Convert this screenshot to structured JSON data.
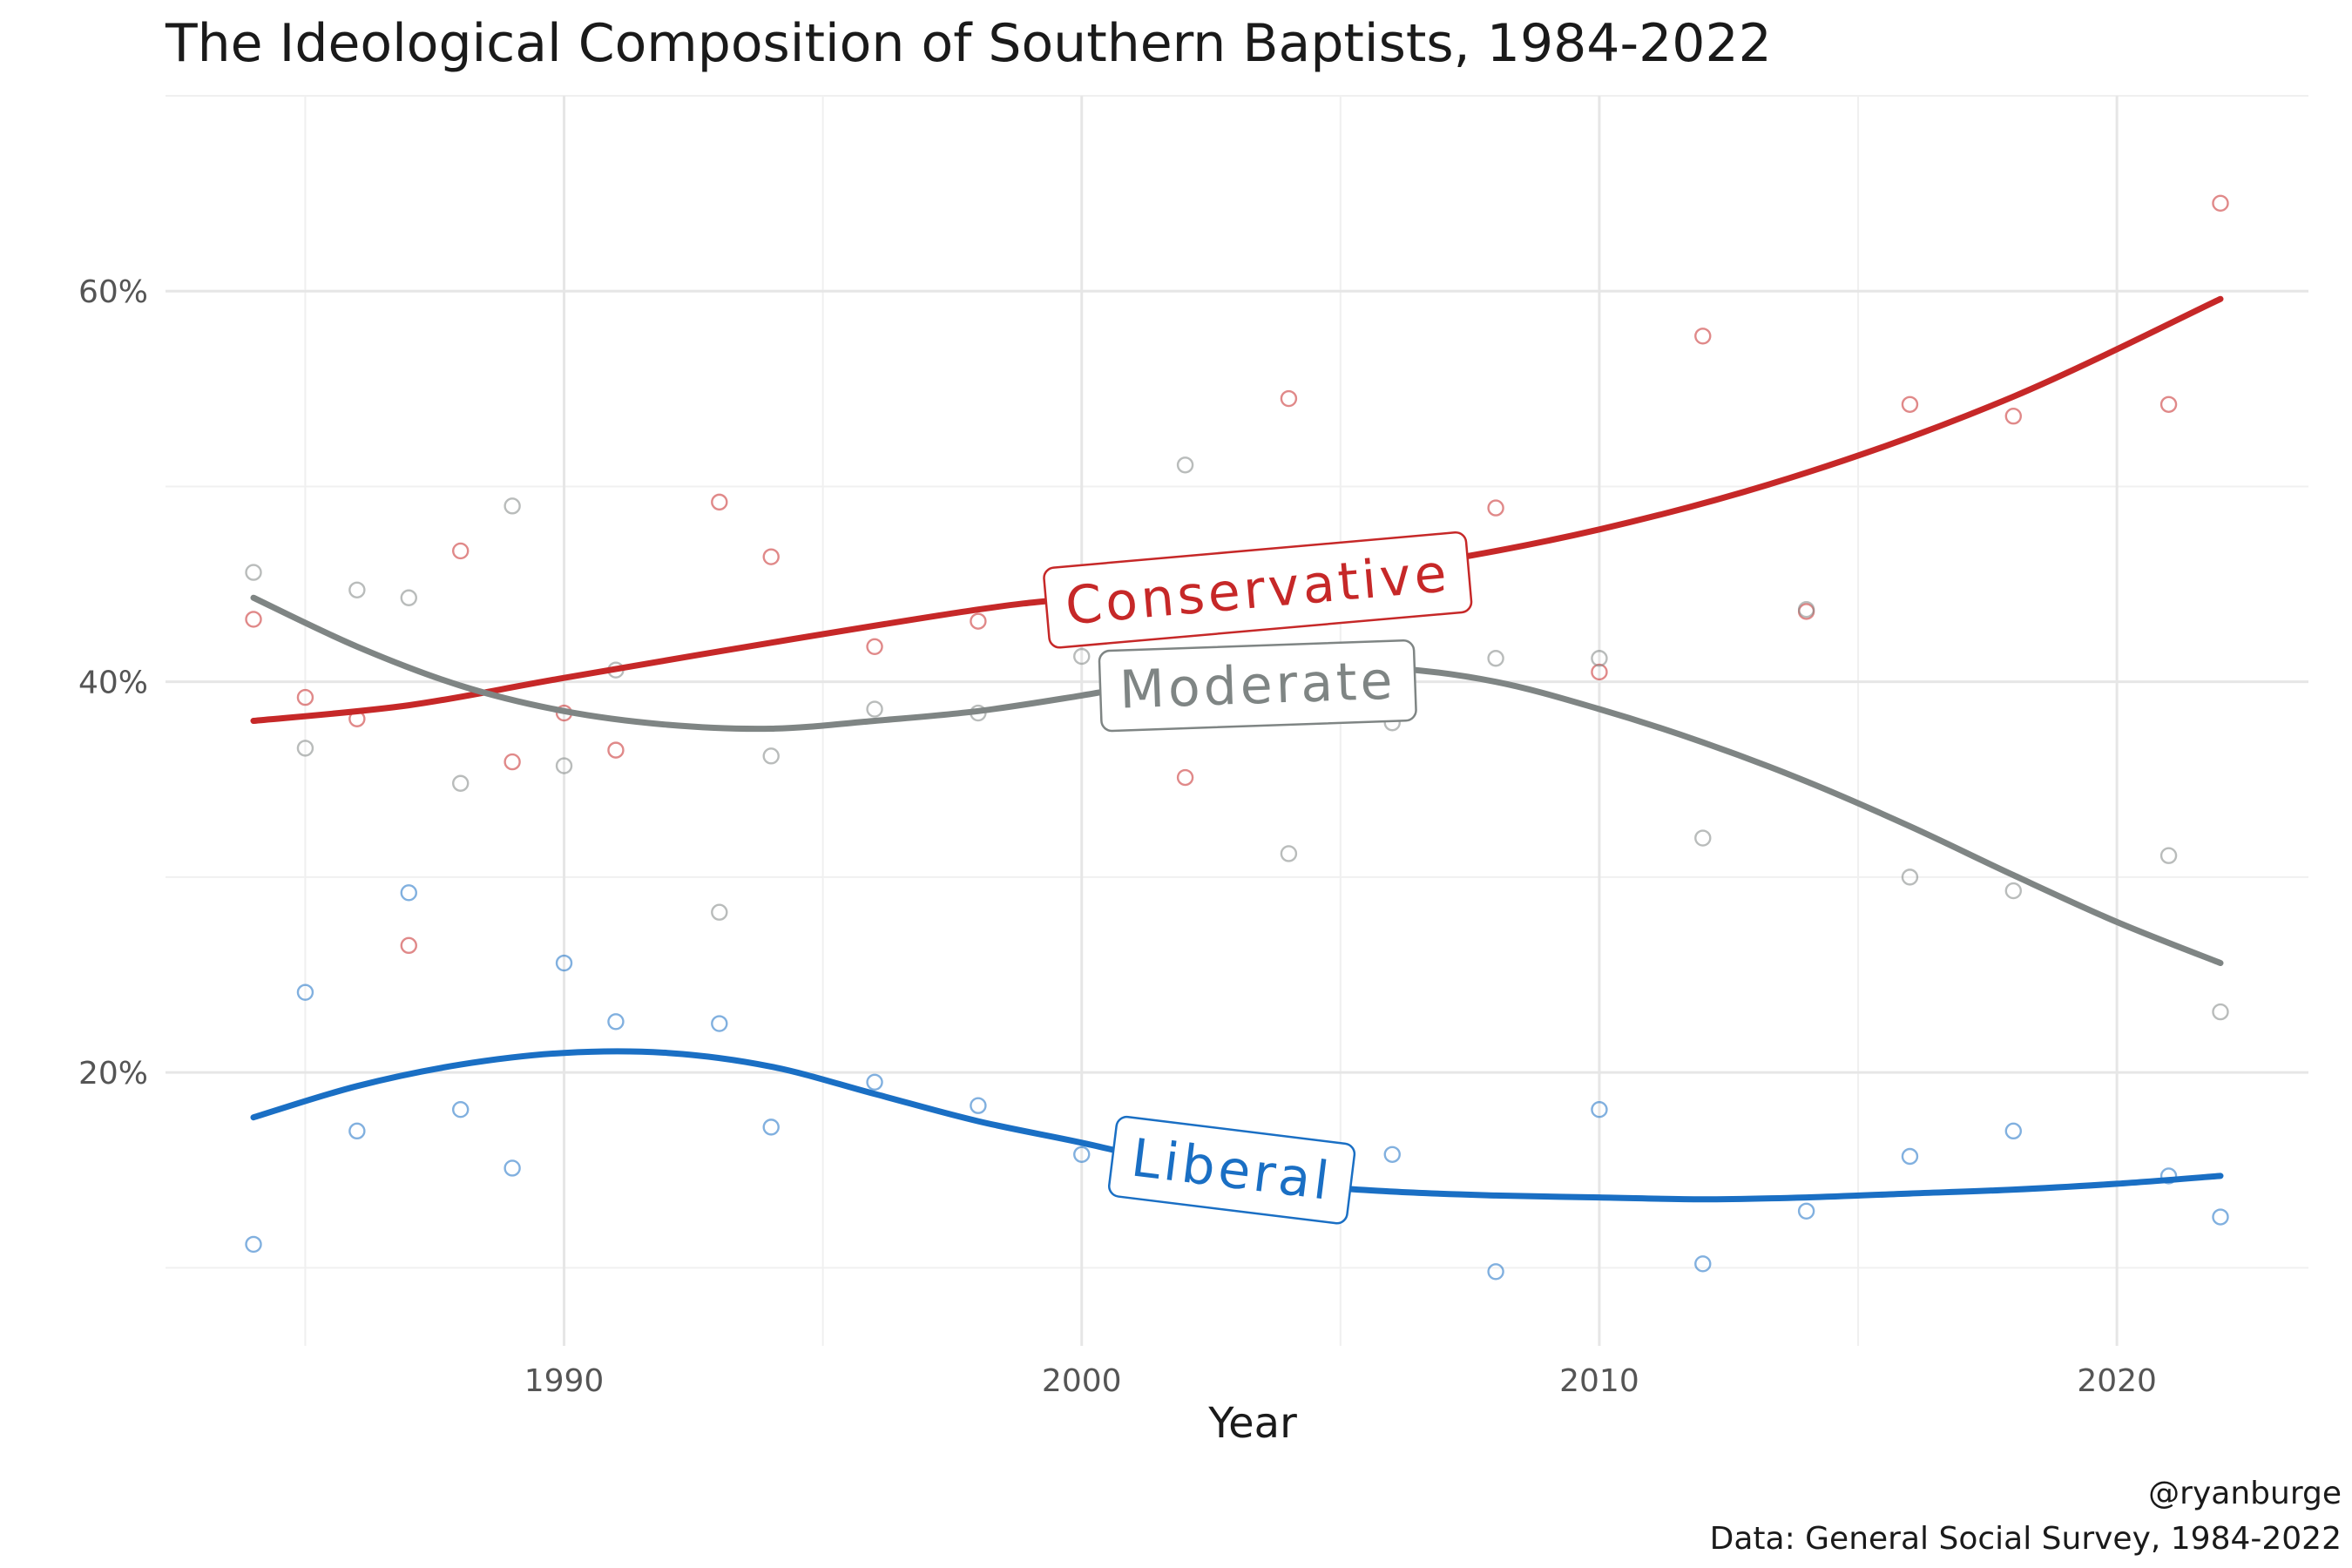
{
  "chart_data": {
    "type": "scatter",
    "title": "The Ideological Composition of Southern Baptists, 1984-2022",
    "xlabel": "Year",
    "ylabel": "",
    "xlim": [
      1982.3,
      2023.7
    ],
    "ylim": [
      0.06,
      0.7
    ],
    "x_ticks": [
      1990,
      2000,
      2010,
      2020
    ],
    "x_tick_labels": [
      "1990",
      "2000",
      "2010",
      "2020"
    ],
    "y_ticks": [
      0.2,
      0.4,
      0.6
    ],
    "y_tick_labels": [
      "20%",
      "40%",
      "60%"
    ],
    "grid": true,
    "caption": [
      "@ryanburge",
      "Data: General Social Survey, 1984-2022"
    ],
    "series": [
      {
        "name": "Conservative",
        "color": "#c62828",
        "points": [
          [
            1984,
            0.432
          ],
          [
            1985,
            0.392
          ],
          [
            1986,
            0.381
          ],
          [
            1987,
            0.265
          ],
          [
            1988,
            0.467
          ],
          [
            1989,
            0.359
          ],
          [
            1990,
            0.384
          ],
          [
            1991,
            0.365
          ],
          [
            1993,
            0.492
          ],
          [
            1994,
            0.464
          ],
          [
            1996,
            0.418
          ],
          [
            1998,
            0.431
          ],
          [
            2002,
            0.351
          ],
          [
            2004,
            0.545
          ],
          [
            2008,
            0.489
          ],
          [
            2010,
            0.405
          ],
          [
            2012,
            0.577
          ],
          [
            2014,
            0.436
          ],
          [
            2016,
            0.542
          ],
          [
            2018,
            0.536
          ],
          [
            2021,
            0.542
          ],
          [
            2022,
            0.645
          ]
        ],
        "trend": [
          [
            1984,
            0.38
          ],
          [
            1987,
            0.388
          ],
          [
            1990,
            0.402
          ],
          [
            1994,
            0.42
          ],
          [
            1998,
            0.437
          ],
          [
            2000,
            0.443
          ],
          [
            2003,
            0.45
          ],
          [
            2006,
            0.458
          ],
          [
            2010,
            0.478
          ],
          [
            2014,
            0.507
          ],
          [
            2018,
            0.546
          ],
          [
            2022,
            0.596
          ]
        ]
      },
      {
        "name": "Moderate",
        "color": "#7f8584",
        "points": [
          [
            1984,
            0.456
          ],
          [
            1985,
            0.366
          ],
          [
            1986,
            0.447
          ],
          [
            1987,
            0.443
          ],
          [
            1988,
            0.348
          ],
          [
            1989,
            0.49
          ],
          [
            1990,
            0.357
          ],
          [
            1991,
            0.406
          ],
          [
            1993,
            0.282
          ],
          [
            1994,
            0.362
          ],
          [
            1996,
            0.386
          ],
          [
            1998,
            0.384
          ],
          [
            2000,
            0.413
          ],
          [
            2002,
            0.511
          ],
          [
            2004,
            0.312
          ],
          [
            2006,
            0.379
          ],
          [
            2008,
            0.412
          ],
          [
            2010,
            0.412
          ],
          [
            2012,
            0.32
          ],
          [
            2014,
            0.437
          ],
          [
            2016,
            0.3
          ],
          [
            2018,
            0.293
          ],
          [
            2021,
            0.311
          ],
          [
            2022,
            0.231
          ]
        ],
        "trend": [
          [
            1984,
            0.443
          ],
          [
            1986,
            0.418
          ],
          [
            1988,
            0.398
          ],
          [
            1990,
            0.385
          ],
          [
            1992,
            0.378
          ],
          [
            1994,
            0.376
          ],
          [
            1996,
            0.38
          ],
          [
            1998,
            0.385
          ],
          [
            2000,
            0.393
          ],
          [
            2002,
            0.402
          ],
          [
            2004,
            0.407
          ],
          [
            2006,
            0.407
          ],
          [
            2008,
            0.4
          ],
          [
            2010,
            0.386
          ],
          [
            2012,
            0.369
          ],
          [
            2014,
            0.349
          ],
          [
            2016,
            0.326
          ],
          [
            2018,
            0.301
          ],
          [
            2020,
            0.277
          ],
          [
            2022,
            0.256
          ]
        ]
      },
      {
        "name": "Liberal",
        "color": "#1a6fc4",
        "points": [
          [
            1984,
            0.112
          ],
          [
            1985,
            0.241
          ],
          [
            1986,
            0.17
          ],
          [
            1987,
            0.292
          ],
          [
            1988,
            0.181
          ],
          [
            1989,
            0.151
          ],
          [
            1990,
            0.256
          ],
          [
            1991,
            0.226
          ],
          [
            1993,
            0.225
          ],
          [
            1994,
            0.172
          ],
          [
            1996,
            0.195
          ],
          [
            1998,
            0.183
          ],
          [
            2000,
            0.158
          ],
          [
            2006,
            0.158
          ],
          [
            2008,
            0.098
          ],
          [
            2010,
            0.181
          ],
          [
            2012,
            0.102
          ],
          [
            2014,
            0.129
          ],
          [
            2016,
            0.157
          ],
          [
            2018,
            0.17
          ],
          [
            2021,
            0.147
          ],
          [
            2022,
            0.126
          ]
        ],
        "trend": [
          [
            1984,
            0.177
          ],
          [
            1986,
            0.193
          ],
          [
            1988,
            0.204
          ],
          [
            1990,
            0.21
          ],
          [
            1992,
            0.21
          ],
          [
            1994,
            0.203
          ],
          [
            1996,
            0.189
          ],
          [
            1998,
            0.175
          ],
          [
            2000,
            0.164
          ],
          [
            2002,
            0.152
          ],
          [
            2004,
            0.143
          ],
          [
            2006,
            0.139
          ],
          [
            2008,
            0.137
          ],
          [
            2010,
            0.136
          ],
          [
            2012,
            0.135
          ],
          [
            2014,
            0.136
          ],
          [
            2016,
            0.138
          ],
          [
            2018,
            0.14
          ],
          [
            2020,
            0.143
          ],
          [
            2022,
            0.147
          ]
        ]
      }
    ],
    "series_labels": [
      {
        "series": "Conservative",
        "text": "Conservative",
        "x": 2003.4,
        "y": 0.447,
        "angle": -5
      },
      {
        "series": "Moderate",
        "text": "Moderate",
        "x": 2003.4,
        "y": 0.398,
        "angle": -2
      },
      {
        "series": "Liberal",
        "text": "Liberal",
        "x": 2002.9,
        "y": 0.15,
        "angle": 7
      }
    ]
  }
}
